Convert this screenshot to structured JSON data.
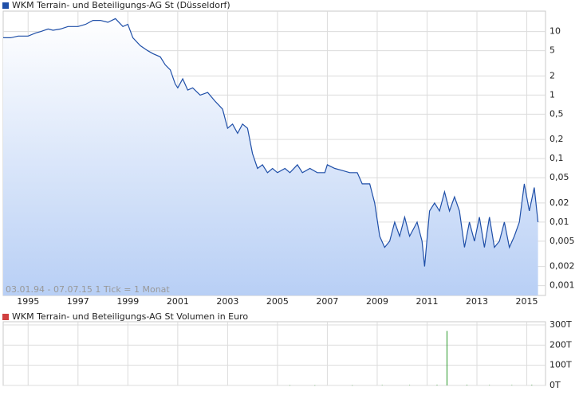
{
  "chart_data": [
    {
      "type": "line",
      "title": "WKM Terrain- und Beteiligungs-AG St (Düsseldorf)",
      "annotation": "03.01.94 - 07.07.15   1 Tick = 1 Monat",
      "log_scale": true,
      "grid": true,
      "xlim": [
        1994.0,
        2015.75
      ],
      "xticks": [
        1995,
        1997,
        1999,
        2001,
        2003,
        2005,
        2007,
        2009,
        2011,
        2013,
        2015
      ],
      "ylim": [
        0.0007,
        28
      ],
      "yticks": [
        {
          "value": 0.001,
          "label": "0,001"
        },
        {
          "value": 0.002,
          "label": "0,002"
        },
        {
          "value": 0.005,
          "label": "0,005"
        },
        {
          "value": 0.01,
          "label": "0,01"
        },
        {
          "value": 0.02,
          "label": "0,02"
        },
        {
          "value": 0.05,
          "label": "0,05"
        },
        {
          "value": 0.1,
          "label": "0,1"
        },
        {
          "value": 0.2,
          "label": "0,2"
        },
        {
          "value": 0.5,
          "label": "0,5"
        },
        1,
        2,
        5,
        10
      ],
      "color": "#1f4fa8",
      "x": [
        1994.0,
        1994.3,
        1994.6,
        1995.0,
        1995.3,
        1995.5,
        1995.8,
        1996.0,
        1996.3,
        1996.6,
        1997.0,
        1997.3,
        1997.6,
        1997.9,
        1998.2,
        1998.5,
        1998.8,
        1999.0,
        1999.2,
        1999.5,
        1999.8,
        2000.0,
        2000.3,
        2000.5,
        2000.7,
        2000.9,
        2001.0,
        2001.2,
        2001.4,
        2001.6,
        2001.9,
        2002.2,
        2002.5,
        2002.8,
        2003.0,
        2003.2,
        2003.4,
        2003.6,
        2003.8,
        2004.0,
        2004.2,
        2004.4,
        2004.6,
        2004.8,
        2005.0,
        2005.3,
        2005.5,
        2005.8,
        2006.0,
        2006.3,
        2006.6,
        2006.9,
        2007.0,
        2007.3,
        2007.6,
        2007.9,
        2008.2,
        2008.4,
        2008.7,
        2008.9,
        2009.1,
        2009.3,
        2009.5,
        2009.7,
        2009.9,
        2010.1,
        2010.3,
        2010.6,
        2010.8,
        2010.9,
        2011.1,
        2011.3,
        2011.5,
        2011.7,
        2011.9,
        2012.1,
        2012.3,
        2012.5,
        2012.7,
        2012.9,
        2013.1,
        2013.3,
        2013.5,
        2013.7,
        2013.9,
        2014.1,
        2014.3,
        2014.5,
        2014.7,
        2014.9,
        2015.1,
        2015.3,
        2015.45
      ],
      "values": [
        8,
        8,
        8.5,
        8.5,
        9.5,
        10,
        11,
        10.5,
        11,
        12,
        12,
        13,
        15,
        15,
        14,
        16,
        12,
        13,
        8,
        6,
        5,
        4.5,
        4,
        3,
        2.5,
        1.5,
        1.3,
        1.8,
        1.2,
        1.3,
        1.0,
        1.1,
        0.8,
        0.6,
        0.3,
        0.35,
        0.25,
        0.35,
        0.3,
        0.12,
        0.07,
        0.08,
        0.06,
        0.07,
        0.06,
        0.07,
        0.06,
        0.08,
        0.06,
        0.07,
        0.06,
        0.06,
        0.08,
        0.07,
        0.065,
        0.06,
        0.06,
        0.04,
        0.04,
        0.02,
        0.006,
        0.004,
        0.005,
        0.01,
        0.006,
        0.012,
        0.006,
        0.01,
        0.005,
        0.002,
        0.015,
        0.02,
        0.015,
        0.03,
        0.015,
        0.025,
        0.015,
        0.004,
        0.01,
        0.005,
        0.012,
        0.004,
        0.012,
        0.004,
        0.005,
        0.01,
        0.004,
        0.006,
        0.01,
        0.04,
        0.015,
        0.035,
        0.01
      ]
    },
    {
      "type": "bar",
      "title": "WKM Terrain- und Beteiligungs-AG St Volumen in Euro",
      "grid": true,
      "xlim": [
        1994.0,
        2015.75
      ],
      "xticks": [
        1995,
        1997,
        1999,
        2001,
        2003,
        2005,
        2007,
        2009,
        2011,
        2013,
        2015
      ],
      "ylim": [
        0,
        300
      ],
      "yticks": [
        {
          "value": 0,
          "label": "0T"
        },
        {
          "value": 100,
          "label": "100T"
        },
        {
          "value": 200,
          "label": "200T"
        },
        {
          "value": 300,
          "label": "300T"
        }
      ],
      "color": "#2a9a2a",
      "x": [
        2005.5,
        2006.5,
        2008.0,
        2009.2,
        2010.3,
        2011.4,
        2011.8,
        2012.6,
        2013.5,
        2014.4,
        2015.2
      ],
      "values": [
        1,
        1,
        1,
        2,
        2,
        3,
        270,
        3,
        2,
        2,
        3
      ]
    }
  ]
}
